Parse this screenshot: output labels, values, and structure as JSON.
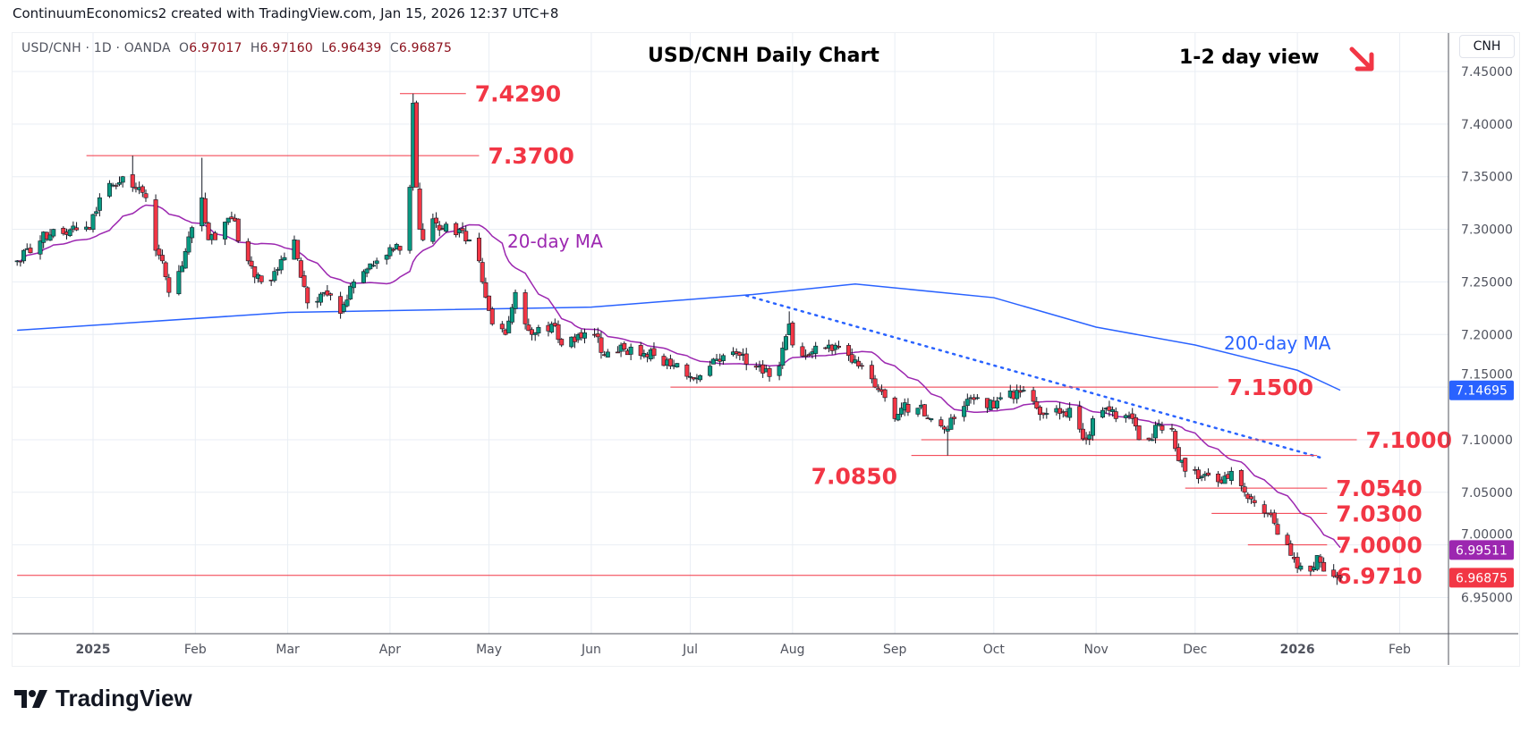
{
  "header": {
    "credit": "ContinuumEconomics2 created with TradingView.com, Jan 15, 2026 12:37 UTC+8"
  },
  "legend": {
    "symbol": "USD/CNH · 1D · OANDA",
    "o_label": "O",
    "o": "6.97017",
    "h_label": "H",
    "h": "6.97160",
    "l_label": "L",
    "l": "6.96439",
    "c_label": "C",
    "c": "6.96875"
  },
  "annotations": {
    "title": "USD/CNH Daily Chart",
    "view": "1-2 day view",
    "ma20_label": "20-day MA",
    "ma200_label": "200-day MA",
    "arrow_icon": "arrow-down-right"
  },
  "currency_button": "CNH",
  "logo_text": "TradingView",
  "colors": {
    "up": "#089981",
    "down": "#f23645",
    "level": "#f23645",
    "ma20": "#9c27b0",
    "ma200": "#2962ff",
    "grid": "#e9eef4"
  },
  "chart_data": {
    "type": "candlestick",
    "title": "USD/CNH Daily Chart",
    "ylim": [
      6.92,
      7.46
    ],
    "y_ticks": [
      "7.45000",
      "7.40000",
      "7.35000",
      "7.30000",
      "7.25000",
      "7.20000",
      "7.15000",
      "7.10000",
      "7.05000",
      "7.00000",
      "6.95000"
    ],
    "x_ticks": [
      {
        "date": "2025-01-01",
        "label": "2025",
        "bold": true
      },
      {
        "date": "2025-02-01",
        "label": "Feb"
      },
      {
        "date": "2025-03-01",
        "label": "Mar"
      },
      {
        "date": "2025-04-01",
        "label": "Apr"
      },
      {
        "date": "2025-05-01",
        "label": "May"
      },
      {
        "date": "2025-06-01",
        "label": "Jun"
      },
      {
        "date": "2025-07-01",
        "label": "Jul"
      },
      {
        "date": "2025-08-01",
        "label": "Aug"
      },
      {
        "date": "2025-09-01",
        "label": "Sep"
      },
      {
        "date": "2025-10-01",
        "label": "Oct"
      },
      {
        "date": "2025-11-01",
        "label": "Nov"
      },
      {
        "date": "2025-12-01",
        "label": "Dec"
      },
      {
        "date": "2026-01-01",
        "label": "2026",
        "bold": true
      },
      {
        "date": "2026-02-01",
        "label": "Feb"
      }
    ],
    "close_anchors": [
      [
        "2024-12-09",
        7.27
      ],
      [
        "2024-12-20",
        7.3
      ],
      [
        "2024-12-31",
        7.3
      ],
      [
        "2025-01-03",
        7.33
      ],
      [
        "2025-01-10",
        7.35
      ],
      [
        "2025-01-13",
        7.34
      ],
      [
        "2025-01-17",
        7.33
      ],
      [
        "2025-01-20",
        7.28
      ],
      [
        "2025-01-22",
        7.27
      ],
      [
        "2025-01-24",
        7.24
      ],
      [
        "2025-01-27",
        7.26
      ],
      [
        "2025-02-03",
        7.33
      ],
      [
        "2025-02-05",
        7.29
      ],
      [
        "2025-02-07",
        7.29
      ],
      [
        "2025-02-12",
        7.31
      ],
      [
        "2025-02-17",
        7.27
      ],
      [
        "2025-02-21",
        7.25
      ],
      [
        "2025-02-25",
        7.26
      ],
      [
        "2025-03-03",
        7.29
      ],
      [
        "2025-03-07",
        7.23
      ],
      [
        "2025-03-12",
        7.24
      ],
      [
        "2025-03-17",
        7.22
      ],
      [
        "2025-03-21",
        7.25
      ],
      [
        "2025-03-28",
        7.27
      ],
      [
        "2025-04-02",
        7.28
      ],
      [
        "2025-04-04",
        7.28
      ],
      [
        "2025-04-07",
        7.34
      ],
      [
        "2025-04-08",
        7.42
      ],
      [
        "2025-04-09",
        7.34
      ],
      [
        "2025-04-10",
        7.3
      ],
      [
        "2025-04-11",
        7.29
      ],
      [
        "2025-04-14",
        7.31
      ],
      [
        "2025-04-17",
        7.3
      ],
      [
        "2025-04-22",
        7.3
      ],
      [
        "2025-04-25",
        7.29
      ],
      [
        "2025-04-28",
        7.27
      ],
      [
        "2025-05-02",
        7.21
      ],
      [
        "2025-05-06",
        7.2
      ],
      [
        "2025-05-09",
        7.24
      ],
      [
        "2025-05-12",
        7.21
      ],
      [
        "2025-05-14",
        7.2
      ],
      [
        "2025-05-20",
        7.21
      ],
      [
        "2025-05-23",
        7.19
      ],
      [
        "2025-05-28",
        7.2
      ],
      [
        "2025-06-02",
        7.2
      ],
      [
        "2025-06-05",
        7.18
      ],
      [
        "2025-06-10",
        7.19
      ],
      [
        "2025-06-16",
        7.18
      ],
      [
        "2025-06-20",
        7.18
      ],
      [
        "2025-06-25",
        7.17
      ],
      [
        "2025-07-01",
        7.16
      ],
      [
        "2025-07-07",
        7.17
      ],
      [
        "2025-07-11",
        7.18
      ],
      [
        "2025-07-16",
        7.18
      ],
      [
        "2025-07-22",
        7.17
      ],
      [
        "2025-07-25",
        7.16
      ],
      [
        "2025-07-28",
        7.17
      ],
      [
        "2025-07-31",
        7.21
      ],
      [
        "2025-08-01",
        7.19
      ],
      [
        "2025-08-06",
        7.18
      ],
      [
        "2025-08-12",
        7.19
      ],
      [
        "2025-08-18",
        7.18
      ],
      [
        "2025-08-22",
        7.17
      ],
      [
        "2025-08-26",
        7.15
      ],
      [
        "2025-08-29",
        7.14
      ],
      [
        "2025-09-01",
        7.12
      ],
      [
        "2025-09-03",
        7.13
      ],
      [
        "2025-09-08",
        7.13
      ],
      [
        "2025-09-12",
        7.12
      ],
      [
        "2025-09-16",
        7.11
      ],
      [
        "2025-09-17",
        7.11
      ],
      [
        "2025-09-19",
        7.12
      ],
      [
        "2025-09-24",
        7.14
      ],
      [
        "2025-09-26",
        7.14
      ],
      [
        "2025-10-01",
        7.13
      ],
      [
        "2025-10-03",
        7.14
      ],
      [
        "2025-10-09",
        7.145
      ],
      [
        "2025-10-14",
        7.13
      ],
      [
        "2025-10-17",
        7.125
      ],
      [
        "2025-10-21",
        7.125
      ],
      [
        "2025-10-24",
        7.13
      ],
      [
        "2025-10-27",
        7.11
      ],
      [
        "2025-10-29",
        7.1
      ],
      [
        "2025-10-31",
        7.12
      ],
      [
        "2025-11-04",
        7.13
      ],
      [
        "2025-11-07",
        7.12
      ],
      [
        "2025-11-12",
        7.12
      ],
      [
        "2025-11-14",
        7.1
      ],
      [
        "2025-11-17",
        7.1
      ],
      [
        "2025-11-20",
        7.115
      ],
      [
        "2025-11-24",
        7.11
      ],
      [
        "2025-11-26",
        7.08
      ],
      [
        "2025-11-28",
        7.07
      ],
      [
        "2025-12-03",
        7.065
      ],
      [
        "2025-12-08",
        7.06
      ],
      [
        "2025-12-12",
        7.07
      ],
      [
        "2025-12-16",
        7.05
      ],
      [
        "2025-12-19",
        7.04
      ],
      [
        "2025-12-23",
        7.03
      ],
      [
        "2025-12-26",
        7.01
      ],
      [
        "2025-12-30",
        6.99
      ],
      [
        "2026-01-02",
        6.98
      ],
      [
        "2026-01-05",
        6.975
      ],
      [
        "2026-01-07",
        6.99
      ],
      [
        "2026-01-09",
        6.975
      ],
      [
        "2026-01-12",
        6.97
      ],
      [
        "2026-01-14",
        6.96875
      ]
    ],
    "extremes": [
      [
        "2025-01-13",
        "h",
        7.37
      ],
      [
        "2025-02-03",
        "h",
        7.368
      ],
      [
        "2025-04-08",
        "h",
        7.429
      ],
      [
        "2025-03-17",
        "l",
        7.215
      ],
      [
        "2025-07-31",
        "h",
        7.222
      ],
      [
        "2025-09-17",
        "l",
        7.085
      ],
      [
        "2026-01-13",
        "l",
        6.962
      ]
    ],
    "ma200": [
      [
        "2024-12-09",
        7.204
      ],
      [
        "2025-03-01",
        7.221
      ],
      [
        "2025-06-01",
        7.226
      ],
      [
        "2025-07-20",
        7.238
      ],
      [
        "2025-08-20",
        7.248
      ],
      [
        "2025-10-01",
        7.235
      ],
      [
        "2025-11-01",
        7.207
      ],
      [
        "2025-12-01",
        7.19
      ],
      [
        "2026-01-01",
        7.166
      ],
      [
        "2026-01-14",
        7.147
      ]
    ],
    "trendline": [
      [
        "2025-07-18",
        7.237
      ],
      [
        "2026-01-08",
        7.083
      ]
    ],
    "levels": [
      {
        "value": 7.429,
        "label": "7.4290",
        "from": "2025-04-04",
        "to": "2025-04-24",
        "label_side": "right"
      },
      {
        "value": 7.37,
        "label": "7.3700",
        "from": "2024-12-30",
        "to": "2025-04-28",
        "label_side": "right"
      },
      {
        "value": 7.15,
        "label": "7.1500",
        "from": "2025-06-25",
        "to": "2025-12-08",
        "label_side": "right"
      },
      {
        "value": 7.1,
        "label": "7.1000",
        "from": "2025-09-09",
        "to": "2026-01-19",
        "label_side": "right"
      },
      {
        "value": 7.085,
        "label": "7.0850",
        "from": "2025-09-06",
        "to": "2026-01-07",
        "label_side": "below-left"
      },
      {
        "value": 7.054,
        "label": "7.0540",
        "from": "2025-11-28",
        "to": "2026-01-10",
        "label_side": "right"
      },
      {
        "value": 7.03,
        "label": "7.0300",
        "from": "2025-12-06",
        "to": "2026-01-10",
        "label_side": "right"
      },
      {
        "value": 7.0,
        "label": "7.0000",
        "from": "2025-12-17",
        "to": "2026-01-10",
        "label_side": "right"
      },
      {
        "value": 6.971,
        "label": "6.9710",
        "from": "2024-12-09",
        "to": "2026-01-10",
        "label_side": "right"
      }
    ],
    "price_tags": [
      {
        "value": 7.14695,
        "label": "7.14695",
        "color": "#2962ff"
      },
      {
        "value": 6.99511,
        "label": "6.99511",
        "color": "#9c27b0"
      },
      {
        "value": 6.96875,
        "label": "6.96875",
        "color": "#f23645"
      }
    ]
  }
}
